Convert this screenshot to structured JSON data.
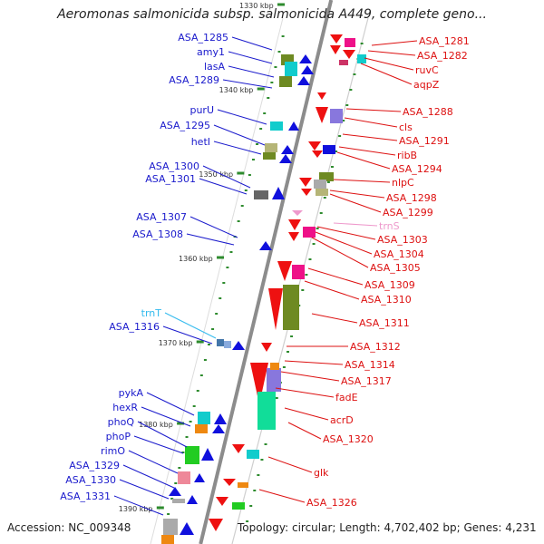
{
  "title": "Aeromonas salmonicida subsp. salmonicida A449, complete geno...",
  "footer": {
    "accession": "Accession: NC_009348",
    "stats": "Topology: circular; Length: 4,702,402 bp; Genes: 4,231"
  },
  "colors": {
    "backbone": "#8c8c8c",
    "ruler_tick": "#2e8b2e",
    "left_label": "#1a1acc",
    "right_label": "#dd1111",
    "trna_left": "#33bbee",
    "trna_right": "#ee99cc"
  },
  "ruler": [
    "1330 kbp",
    "1340 kbp",
    "1350 kbp",
    "1360 kbp",
    "1370 kbp",
    "1380 kbp",
    "1390 kbp"
  ],
  "left_labels": [
    "ASA_1285",
    "amy1",
    "lasA",
    "ASA_1289",
    "purU",
    "ASA_1295",
    "hetI",
    "ASA_1300",
    "ASA_1301",
    "ASA_1307",
    "ASA_1308",
    "trnT",
    "ASA_1316",
    "pykA",
    "hexR",
    "phoQ",
    "phoP",
    "rimO",
    "ASA_1329",
    "ASA_1330",
    "ASA_1331"
  ],
  "right_labels": [
    "ASA_1281",
    "ASA_1282",
    "ruvC",
    "aqpZ",
    "ASA_1288",
    "cls",
    "ASA_1291",
    "ribB",
    "ASA_1294",
    "nlpC",
    "ASA_1298",
    "ASA_1299",
    "trnS",
    "ASA_1303",
    "ASA_1304",
    "ASA_1305",
    "ASA_1309",
    "ASA_1310",
    "ASA_1311",
    "ASA_1312",
    "ASA_1314",
    "ASA_1317",
    "fadE",
    "acrD",
    "ASA_1320",
    "glk",
    "ASA_1326"
  ]
}
